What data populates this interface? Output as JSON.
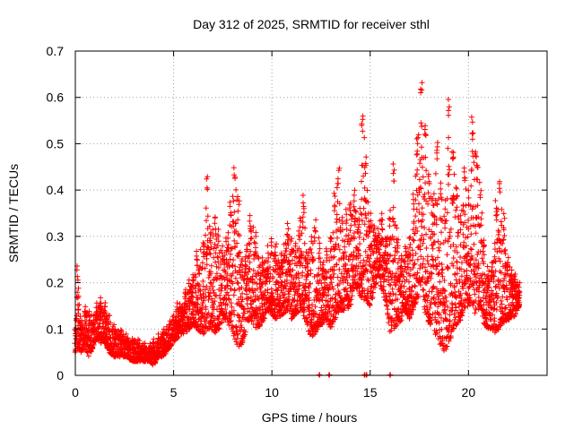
{
  "chart_data": {
    "type": "scatter",
    "title": "Day 312 of 2025, SRMTID for receiver sthl",
    "xlabel": "GPS time / hours",
    "ylabel": "SRMTID / TECUs",
    "xlim": [
      0,
      24
    ],
    "ylim": [
      0,
      0.7
    ],
    "x_ticks": [
      0,
      5,
      10,
      15,
      20
    ],
    "x_tick_labels": [
      "0",
      "5",
      "10",
      "15",
      "20"
    ],
    "y_ticks": [
      0,
      0.1,
      0.2,
      0.3,
      0.4,
      0.5,
      0.6,
      0.7
    ],
    "y_tick_labels": [
      "0",
      "0.1",
      "0.2",
      "0.3",
      "0.4",
      "0.5",
      "0.6",
      "0.7"
    ],
    "grid": true,
    "marker": "+",
    "series_color": "#ff0000",
    "envelope": {
      "name": "SRMTID",
      "x": [
        0,
        0.1,
        0.3,
        0.5,
        0.7,
        0.9,
        1.1,
        1.3,
        1.5,
        1.7,
        2.0,
        2.3,
        2.6,
        2.9,
        3.2,
        3.5,
        3.8,
        4.0,
        4.2,
        4.5,
        4.8,
        5.0,
        5.2,
        5.4,
        5.6,
        5.8,
        6.0,
        6.2,
        6.5,
        6.7,
        6.9,
        7.1,
        7.3,
        7.5,
        7.7,
        7.9,
        8.1,
        8.3,
        8.5,
        8.7,
        8.9,
        9.2,
        9.5,
        9.8,
        10.0,
        10.2,
        10.5,
        10.8,
        11.0,
        11.2,
        11.4,
        11.6,
        11.8,
        12.0,
        12.2,
        12.4,
        12.6,
        12.8,
        13.0,
        13.2,
        13.4,
        13.6,
        13.8,
        14.0,
        14.2,
        14.4,
        14.6,
        14.8,
        15.0,
        15.2,
        15.4,
        15.6,
        15.8,
        16.0,
        16.2,
        16.4,
        16.6,
        16.8,
        17.0,
        17.2,
        17.4,
        17.6,
        17.8,
        18.0,
        18.2,
        18.4,
        18.6,
        18.8,
        19.0,
        19.2,
        19.4,
        19.6,
        19.8,
        20.0,
        20.2,
        20.4,
        20.6,
        20.8,
        21.0,
        21.2,
        21.4,
        21.6,
        21.8,
        22.0,
        22.2,
        22.4,
        22.6
      ],
      "low": [
        0.05,
        0.06,
        0.05,
        0.06,
        0.04,
        0.06,
        0.08,
        0.07,
        0.07,
        0.05,
        0.04,
        0.04,
        0.04,
        0.03,
        0.03,
        0.03,
        0.03,
        0.02,
        0.04,
        0.04,
        0.06,
        0.07,
        0.08,
        0.09,
        0.09,
        0.1,
        0.11,
        0.1,
        0.08,
        0.1,
        0.1,
        0.09,
        0.1,
        0.12,
        0.12,
        0.1,
        0.08,
        0.06,
        0.07,
        0.1,
        0.12,
        0.1,
        0.11,
        0.14,
        0.13,
        0.12,
        0.13,
        0.14,
        0.12,
        0.13,
        0.14,
        0.13,
        0.1,
        0.08,
        0.09,
        0.11,
        0.11,
        0.12,
        0.1,
        0.12,
        0.13,
        0.14,
        0.14,
        0.15,
        0.2,
        0.18,
        0.16,
        0.16,
        0.15,
        0.18,
        0.22,
        0.18,
        0.16,
        0.09,
        0.1,
        0.11,
        0.12,
        0.14,
        0.12,
        0.14,
        0.16,
        0.2,
        0.13,
        0.11,
        0.1,
        0.08,
        0.06,
        0.05,
        0.07,
        0.09,
        0.11,
        0.12,
        0.14,
        0.15,
        0.14,
        0.13,
        0.15,
        0.11,
        0.1,
        0.1,
        0.09,
        0.1,
        0.11,
        0.12,
        0.12,
        0.13,
        0.15
      ],
      "high": [
        0.1,
        0.24,
        0.12,
        0.15,
        0.14,
        0.13,
        0.16,
        0.17,
        0.16,
        0.13,
        0.11,
        0.1,
        0.09,
        0.08,
        0.08,
        0.07,
        0.07,
        0.08,
        0.09,
        0.1,
        0.12,
        0.13,
        0.16,
        0.15,
        0.19,
        0.21,
        0.22,
        0.27,
        0.29,
        0.44,
        0.31,
        0.35,
        0.32,
        0.28,
        0.3,
        0.38,
        0.46,
        0.39,
        0.25,
        0.29,
        0.35,
        0.31,
        0.26,
        0.28,
        0.3,
        0.29,
        0.27,
        0.33,
        0.3,
        0.29,
        0.34,
        0.39,
        0.27,
        0.3,
        0.34,
        0.3,
        0.25,
        0.28,
        0.3,
        0.4,
        0.46,
        0.35,
        0.36,
        0.38,
        0.4,
        0.34,
        0.57,
        0.48,
        0.35,
        0.33,
        0.32,
        0.35,
        0.3,
        0.36,
        0.46,
        0.3,
        0.26,
        0.28,
        0.3,
        0.4,
        0.52,
        0.65,
        0.55,
        0.45,
        0.39,
        0.52,
        0.42,
        0.36,
        0.6,
        0.5,
        0.42,
        0.35,
        0.46,
        0.4,
        0.56,
        0.5,
        0.42,
        0.3,
        0.23,
        0.25,
        0.38,
        0.43,
        0.35,
        0.26,
        0.23,
        0.22,
        0.2
      ]
    },
    "baseline_outliers_x": [
      12.4,
      12.9,
      14.7,
      14.8,
      16.0
    ]
  }
}
